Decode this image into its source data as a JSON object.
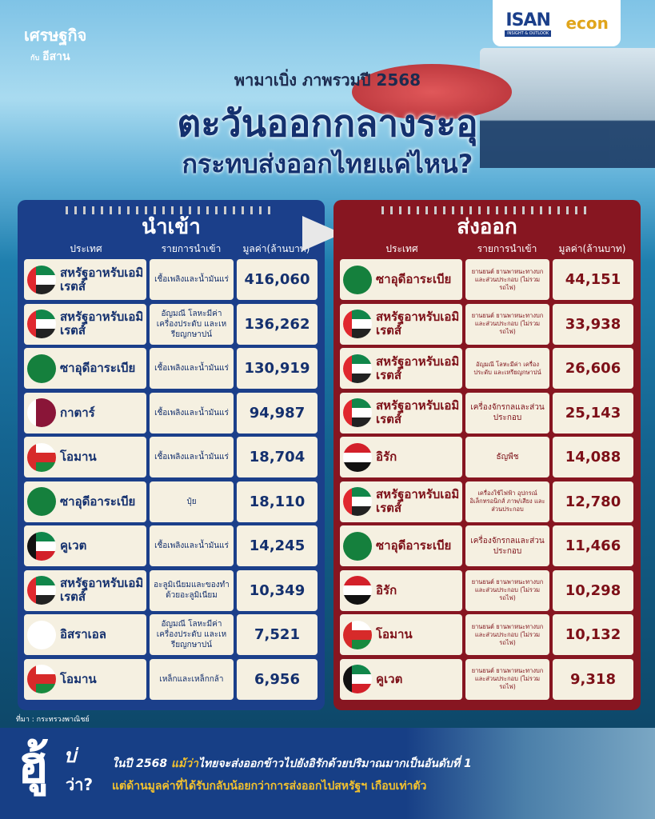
{
  "brand": {
    "line1": "เศรษฐกิจ",
    "prefix": "กับ",
    "line2": "อีสาน"
  },
  "logos": {
    "isan": "ISAN",
    "isan_sub": "INSIGHT & OUTLOOK",
    "econ": "econ"
  },
  "header": {
    "subtitle": "พามาเบิ่ง ภาพรวมปี 2568",
    "title": "ตะวันออกกลางระอุ",
    "title2": "กระทบส่งออกไทยแค่ไหน?"
  },
  "colors": {
    "import": "#1b3f8a",
    "export": "#871621",
    "highlight": "#f2c12e"
  },
  "imports": {
    "title": "นำเข้า",
    "headers": [
      "ประเทศ",
      "รายการนำเข้า",
      "มูลค่า(ล้านบาท)"
    ],
    "rows": [
      {
        "flag": "uae",
        "country": "สหรัฐอาหรับเอมิเรตส์",
        "item": "เชื้อเพลิงและน้ำมันแร่",
        "value": "416,060"
      },
      {
        "flag": "uae",
        "country": "สหรัฐอาหรับเอมิเรตส์",
        "item": "อัญมณี โลหะมีค่า เครื่องประดับ และเหรียญกษาปน์",
        "value": "136,262"
      },
      {
        "flag": "saudi",
        "country": "ซาอุดีอาระเบีย",
        "item": "เชื้อเพลิงและน้ำมันแร่",
        "value": "130,919"
      },
      {
        "flag": "qatar",
        "country": "กาตาร์",
        "item": "เชื้อเพลิงและน้ำมันแร่",
        "value": "94,987"
      },
      {
        "flag": "oman",
        "country": "โอมาน",
        "item": "เชื้อเพลิงและน้ำมันแร่",
        "value": "18,704"
      },
      {
        "flag": "saudi",
        "country": "ซาอุดีอาระเบีย",
        "item": "ปุ๋ย",
        "value": "18,110"
      },
      {
        "flag": "kuwait",
        "country": "คูเวต",
        "item": "เชื้อเพลิงและน้ำมันแร่",
        "value": "14,245"
      },
      {
        "flag": "uae",
        "country": "สหรัฐอาหรับเอมิเรตส์",
        "item": "อะลูมิเนียมและของทำด้วยอะลูมิเนียม",
        "value": "10,349"
      },
      {
        "flag": "israel",
        "country": "อิสราเอล",
        "item": "อัญมณี โลหะมีค่า เครื่องประดับ และเหรียญกษาปน์",
        "value": "7,521"
      },
      {
        "flag": "oman",
        "country": "โอมาน",
        "item": "เหล็กและเหล็กกล้า",
        "value": "6,956"
      }
    ]
  },
  "exports": {
    "title": "ส่งออก",
    "headers": [
      "ประเทศ",
      "รายการนำเข้า",
      "มูลค่า(ล้านบาท)"
    ],
    "rows": [
      {
        "flag": "saudi",
        "country": "ซาอุดีอาระเบีย",
        "item": "ยานยนต์ ยานพาหนะทางบก และส่วนประกอบ (ไม่รวมรถไฟ)",
        "value": "44,151"
      },
      {
        "flag": "uae",
        "country": "สหรัฐอาหรับเอมิเรตส์",
        "item": "ยานยนต์ ยานพาหนะทางบก และส่วนประกอบ (ไม่รวมรถไฟ)",
        "value": "33,938"
      },
      {
        "flag": "uae",
        "country": "สหรัฐอาหรับเอมิเรตส์",
        "item": "อัญมณี โลหะมีค่า เครื่องประดับ และเหรียญกษาปน์",
        "value": "26,606"
      },
      {
        "flag": "uae",
        "country": "สหรัฐอาหรับเอมิเรตส์",
        "item": "เครื่องจักรกลและส่วนประกอบ",
        "value": "25,143"
      },
      {
        "flag": "iraq",
        "country": "อิรัก",
        "item": "ธัญพืช",
        "value": "14,088"
      },
      {
        "flag": "uae",
        "country": "สหรัฐอาหรับเอมิเรตส์",
        "item": "เครื่องใช้ไฟฟ้า อุปกรณ์อิเล็กทรอนิกส์ ภาพ/เสียง และส่วนประกอบ",
        "value": "12,780"
      },
      {
        "flag": "saudi",
        "country": "ซาอุดีอาระเบีย",
        "item": "เครื่องจักรกลและส่วนประกอบ",
        "value": "11,466"
      },
      {
        "flag": "iraq",
        "country": "อิรัก",
        "item": "ยานยนต์ ยานพาหนะทางบก และส่วนประกอบ (ไม่รวมรถไฟ)",
        "value": "10,298"
      },
      {
        "flag": "oman",
        "country": "โอมาน",
        "item": "ยานยนต์ ยานพาหนะทางบก และส่วนประกอบ (ไม่รวมรถไฟ)",
        "value": "10,132"
      },
      {
        "flag": "kuwait",
        "country": "คูเวต",
        "item": "ยานยนต์ ยานพาหนะทางบก และส่วนประกอบ (ไม่รวมรถไฟ)",
        "value": "9,318"
      }
    ]
  },
  "source": "ที่มา : กระทรวงพาณิชย์",
  "footer": {
    "hu": "ฮู้",
    "bor": "บ่",
    "wa": "ว่า?",
    "line1_a": "ในปี 2568 ",
    "line1_hl": "แม้ว่า",
    "line1_b": "ไทยจะส่งออกข้าวไปยังอิรักด้วยปริมาณมากเป็นอันดับที่ 1",
    "line2": "แต่ด้านมูลค่าที่ได้รับกลับน้อยกว่าการส่งออกไปสหรัฐฯ เกือบเท่าตัว"
  }
}
